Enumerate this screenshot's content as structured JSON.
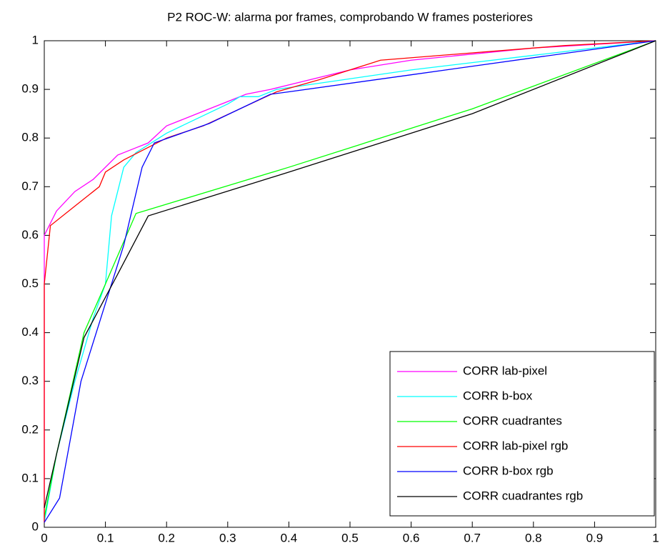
{
  "chart_data": {
    "type": "line",
    "title": "P2 ROC-W: alarma por frames, comprobando W frames posteriores",
    "xlim": [
      0,
      1
    ],
    "ylim": [
      0,
      1
    ],
    "xticks": [
      0,
      0.1,
      0.2,
      0.3,
      0.4,
      0.5,
      0.6,
      0.7,
      0.8,
      0.9,
      1
    ],
    "yticks": [
      0,
      0.1,
      0.2,
      0.3,
      0.4,
      0.5,
      0.6,
      0.7,
      0.8,
      0.9,
      1
    ],
    "grid": false,
    "legend": "southeast",
    "series": [
      {
        "name": "CORR lab-pixel",
        "color": "#ff00ff",
        "x": [
          0,
          0,
          0.02,
          0.05,
          0.08,
          0.12,
          0.15,
          0.17,
          0.2,
          0.25,
          0.3,
          0.33,
          0.37,
          0.5,
          0.6,
          0.8,
          1
        ],
        "values": [
          0.01,
          0.6,
          0.65,
          0.69,
          0.715,
          0.765,
          0.78,
          0.79,
          0.825,
          0.85,
          0.875,
          0.89,
          0.9,
          0.94,
          0.96,
          0.985,
          1
        ]
      },
      {
        "name": "CORR b-box",
        "color": "#00ffff",
        "x": [
          0,
          0.02,
          0.05,
          0.08,
          0.1,
          0.11,
          0.13,
          0.15,
          0.2,
          0.3,
          0.32,
          0.35,
          0.38,
          0.6,
          0.8,
          1
        ],
        "values": [
          0.01,
          0.15,
          0.3,
          0.43,
          0.5,
          0.64,
          0.74,
          0.77,
          0.81,
          0.87,
          0.885,
          0.885,
          0.9,
          0.94,
          0.97,
          1
        ]
      },
      {
        "name": "CORR cuadrantes",
        "color": "#00ff00",
        "x": [
          0,
          0.02,
          0.065,
          0.1,
          0.15,
          0.4,
          0.7,
          1
        ],
        "values": [
          0.02,
          0.15,
          0.4,
          0.5,
          0.645,
          0.74,
          0.86,
          1
        ]
      },
      {
        "name": "CORR lab-pixel rgb",
        "color": "#ff0000",
        "x": [
          0,
          0,
          0.01,
          0.05,
          0.09,
          0.1,
          0.13,
          0.2,
          0.26,
          0.32,
          0.38,
          0.45,
          0.55,
          0.7,
          0.85,
          1
        ],
        "values": [
          0.01,
          0.5,
          0.62,
          0.66,
          0.7,
          0.73,
          0.755,
          0.8,
          0.825,
          0.86,
          0.895,
          0.92,
          0.96,
          0.975,
          0.99,
          1
        ]
      },
      {
        "name": "CORR b-box rgb",
        "color": "#0000ff",
        "x": [
          0,
          0.025,
          0.06,
          0.1,
          0.13,
          0.16,
          0.18,
          0.27,
          0.37,
          0.4,
          0.6,
          1
        ],
        "values": [
          0.01,
          0.06,
          0.3,
          0.46,
          0.58,
          0.74,
          0.79,
          0.83,
          0.89,
          0.895,
          0.93,
          1
        ]
      },
      {
        "name": "CORR cuadrantes rgb",
        "color": "#000000",
        "x": [
          0,
          0.02,
          0.065,
          0.12,
          0.17,
          0.4,
          0.7,
          1
        ],
        "values": [
          0.04,
          0.15,
          0.39,
          0.52,
          0.64,
          0.73,
          0.85,
          1
        ]
      }
    ]
  }
}
